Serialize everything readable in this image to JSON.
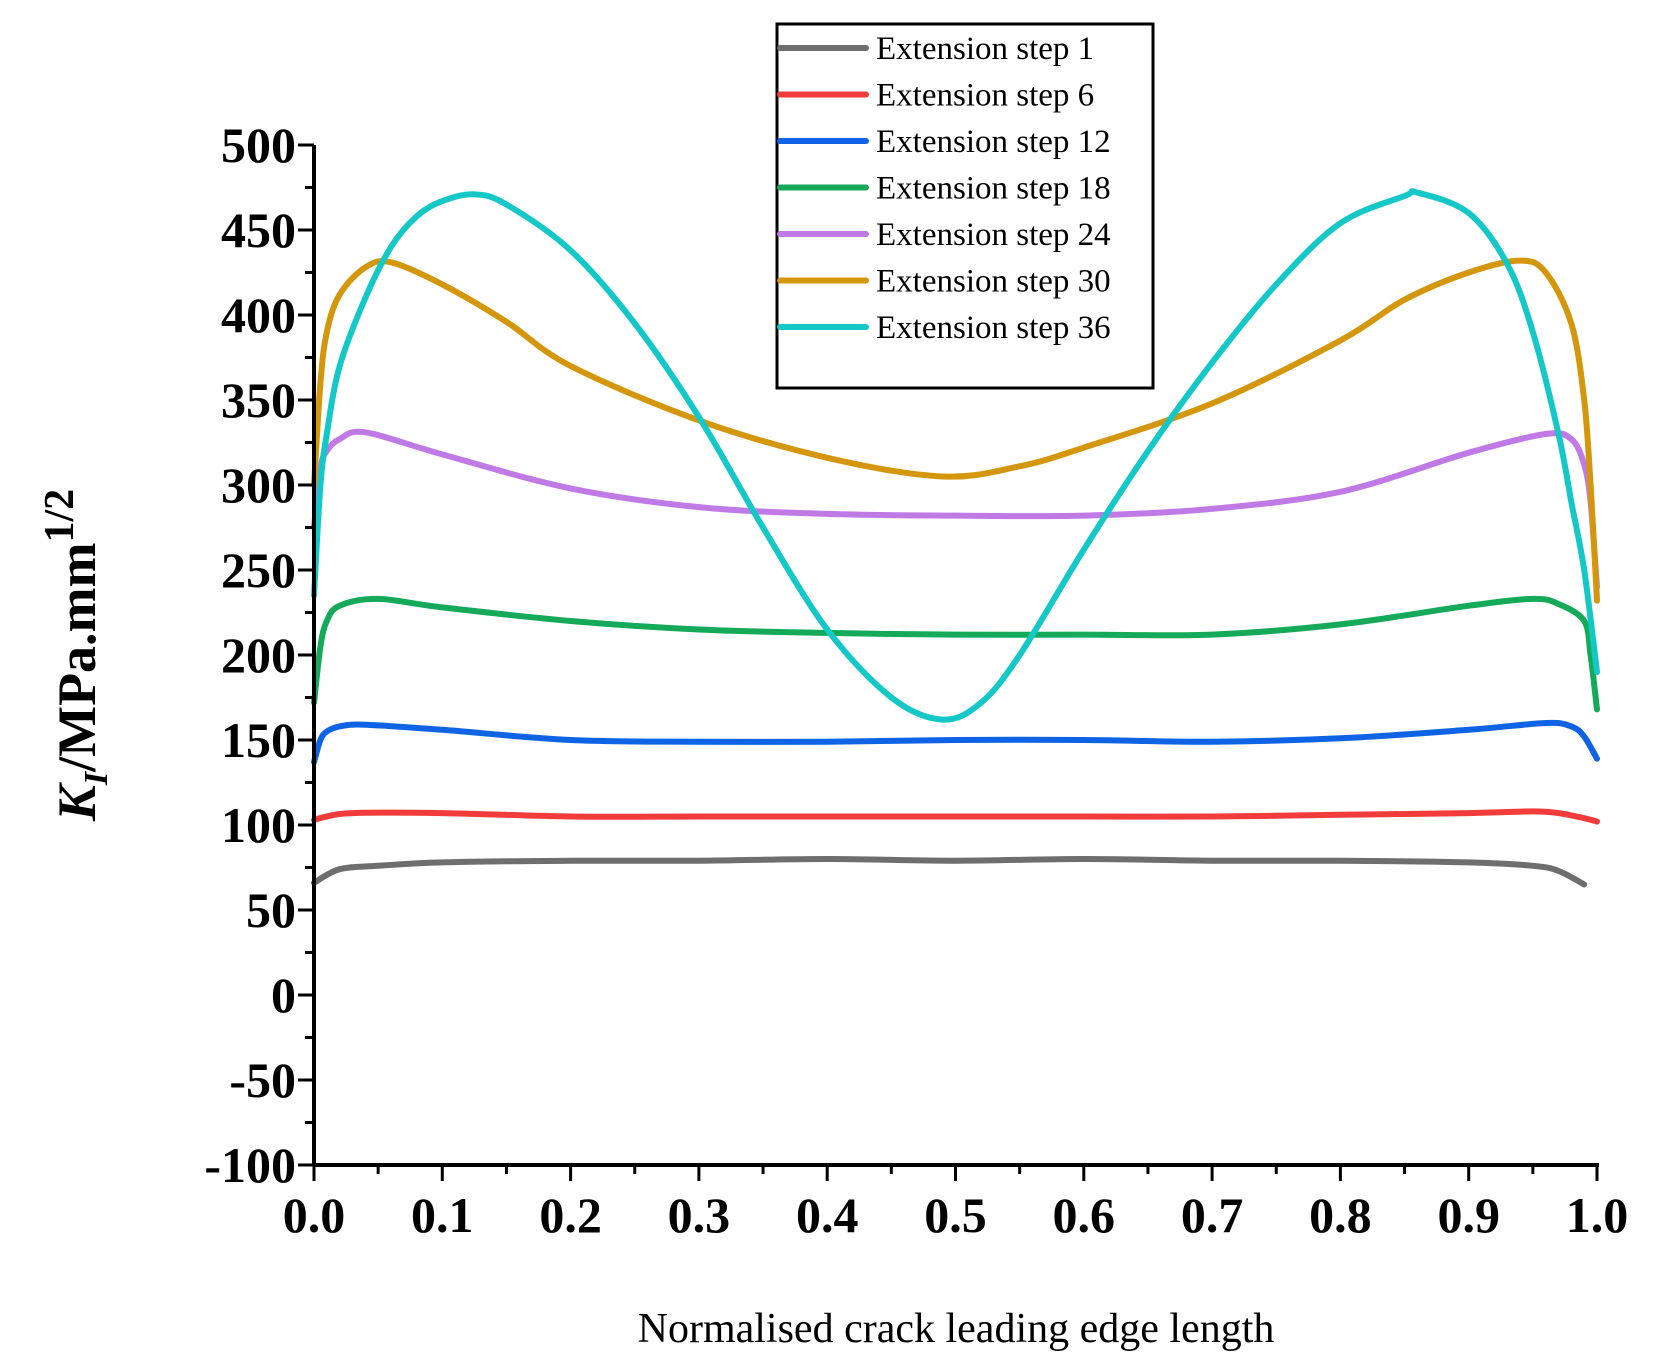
{
  "chart_data": {
    "type": "line",
    "title": "",
    "xlabel": "Normalised crack leading edge length",
    "ylabel": {
      "main": "K",
      "subscript": "I",
      "unit": "/MPa.mm",
      "superscript": "1/2"
    },
    "xlim": [
      0.0,
      1.0
    ],
    "ylim": [
      -100,
      500
    ],
    "xticks": [
      "0.0",
      "0.1",
      "0.2",
      "0.3",
      "0.4",
      "0.5",
      "0.6",
      "0.7",
      "0.8",
      "0.9",
      "1.0"
    ],
    "xtick_values": [
      0.0,
      0.1,
      0.2,
      0.3,
      0.4,
      0.5,
      0.6,
      0.7,
      0.8,
      0.9,
      1.0
    ],
    "yticks": [
      "-100",
      "-50",
      "0",
      "50",
      "100",
      "150",
      "200",
      "250",
      "300",
      "350",
      "400",
      "450",
      "500"
    ],
    "ytick_values": [
      -100,
      -50,
      0,
      50,
      100,
      150,
      200,
      250,
      300,
      350,
      400,
      450,
      500
    ],
    "legend_position": "top-center",
    "series": [
      {
        "name": "Extension step  1",
        "color": "#6e6e6e",
        "x": [
          0.0,
          0.02,
          0.05,
          0.1,
          0.2,
          0.3,
          0.4,
          0.5,
          0.6,
          0.7,
          0.8,
          0.9,
          0.95,
          0.97,
          0.99
        ],
        "y": [
          66,
          74,
          76,
          78,
          79,
          79,
          80,
          79,
          80,
          79,
          79,
          78,
          76,
          73,
          65
        ]
      },
      {
        "name": "Extension step  6",
        "color": "#f23c3c",
        "x": [
          0.0,
          0.01,
          0.03,
          0.1,
          0.2,
          0.3,
          0.4,
          0.5,
          0.6,
          0.7,
          0.8,
          0.9,
          0.95,
          0.97,
          0.99,
          1.0
        ],
        "y": [
          103,
          105,
          107,
          107,
          105,
          105,
          105,
          105,
          105,
          105,
          106,
          107,
          108,
          107,
          104,
          102
        ]
      },
      {
        "name": "Extension step  12",
        "color": "#0f64e6",
        "x": [
          0.0,
          0.005,
          0.01,
          0.02,
          0.04,
          0.1,
          0.2,
          0.3,
          0.4,
          0.5,
          0.6,
          0.7,
          0.8,
          0.9,
          0.96,
          0.98,
          0.99,
          1.0
        ],
        "y": [
          137,
          150,
          155,
          158,
          159,
          156,
          150,
          149,
          149,
          150,
          150,
          149,
          151,
          156,
          160,
          158,
          152,
          139
        ]
      },
      {
        "name": "Extension step  18",
        "color": "#14aa5a",
        "x": [
          0.0,
          0.005,
          0.01,
          0.02,
          0.05,
          0.1,
          0.2,
          0.3,
          0.4,
          0.5,
          0.6,
          0.7,
          0.8,
          0.9,
          0.95,
          0.97,
          0.99,
          0.995,
          1.0
        ],
        "y": [
          172,
          205,
          220,
          229,
          233,
          228,
          220,
          215,
          213,
          212,
          212,
          212,
          218,
          229,
          233,
          230,
          220,
          200,
          168
        ]
      },
      {
        "name": "Extension step  24",
        "color": "#c07ae6",
        "x": [
          0.0,
          0.005,
          0.01,
          0.02,
          0.04,
          0.1,
          0.2,
          0.3,
          0.4,
          0.5,
          0.6,
          0.7,
          0.8,
          0.9,
          0.96,
          0.98,
          0.99,
          0.995,
          1.0
        ],
        "y": [
          275,
          310,
          320,
          327,
          331,
          318,
          298,
          287,
          283,
          282,
          282,
          286,
          296,
          319,
          330,
          327,
          312,
          290,
          240
        ]
      },
      {
        "name": "Extension step  30",
        "color": "#d4960a",
        "x": [
          0.0,
          0.005,
          0.01,
          0.02,
          0.04,
          0.06,
          0.1,
          0.15,
          0.2,
          0.3,
          0.4,
          0.49,
          0.55,
          0.6,
          0.7,
          0.8,
          0.85,
          0.9,
          0.94,
          0.96,
          0.98,
          0.99,
          0.995,
          1.0
        ],
        "y": [
          300,
          360,
          390,
          412,
          428,
          431,
          418,
          396,
          370,
          338,
          316,
          305,
          311,
          322,
          348,
          385,
          409,
          425,
          432,
          425,
          395,
          350,
          300,
          232
        ]
      },
      {
        "name": "Extension step  36",
        "color": "#14c8c8",
        "x": [
          0.0,
          0.005,
          0.01,
          0.02,
          0.04,
          0.06,
          0.08,
          0.1,
          0.125,
          0.15,
          0.2,
          0.25,
          0.3,
          0.35,
          0.4,
          0.45,
          0.49,
          0.52,
          0.55,
          0.6,
          0.65,
          0.7,
          0.75,
          0.8,
          0.85,
          0.86,
          0.9,
          0.93,
          0.95,
          0.97,
          0.98,
          0.99,
          1.0
        ],
        "y": [
          235,
          300,
          330,
          370,
          410,
          440,
          458,
          467,
          471,
          465,
          438,
          395,
          340,
          275,
          215,
          175,
          162,
          172,
          200,
          262,
          320,
          372,
          418,
          454,
          470,
          472,
          460,
          430,
          390,
          330,
          290,
          250,
          190
        ]
      }
    ]
  }
}
